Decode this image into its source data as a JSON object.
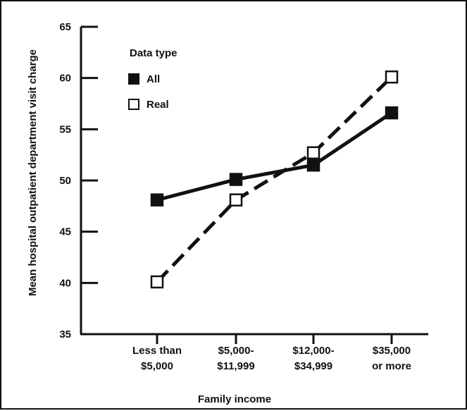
{
  "chart_data": {
    "type": "line",
    "ylabel": "Mean hospital outpatient department visit charge",
    "xlabel": "Family income",
    "ylim": [
      35,
      65
    ],
    "yticks": [
      "35",
      "40",
      "45",
      "50",
      "55",
      "60",
      "65"
    ],
    "categories": [
      [
        "Less than",
        "$5,000"
      ],
      [
        "$5,000-",
        "$11,999"
      ],
      [
        "$12,000-",
        "$34,999"
      ],
      [
        "$35,000",
        "or more"
      ]
    ],
    "legend_title": "Data type",
    "legend_position": "top-left",
    "grid": false,
    "series": [
      {
        "name": "All",
        "values": [
          48.1,
          50.1,
          51.5,
          56.6
        ],
        "marker": "filled-square",
        "line": "solid",
        "color": "#111111"
      },
      {
        "name": "Real",
        "values": [
          40.1,
          48.1,
          52.7,
          60.1
        ],
        "marker": "open-square",
        "line": "dashed",
        "color": "#111111"
      }
    ]
  }
}
